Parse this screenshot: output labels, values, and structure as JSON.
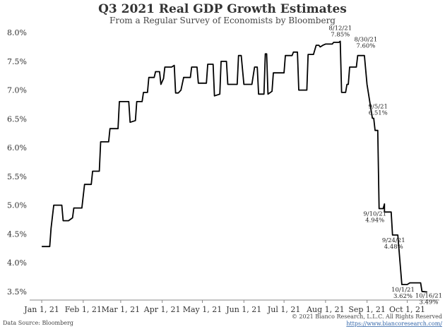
{
  "chart_data": {
    "type": "line",
    "title": "Q3 2021 Real GDP Growth Estimates",
    "subtitle": "From a Regular Survey of Economists by Bloomberg",
    "xlabel": "",
    "ylabel": "",
    "xlim": [
      "2020-12-23",
      "2021-10-25"
    ],
    "ylim": [
      3.35,
      8.1
    ],
    "yticks": [
      3.5,
      4.0,
      4.5,
      5.0,
      5.5,
      6.0,
      6.5,
      7.0,
      7.5,
      8.0
    ],
    "ytick_labels": [
      "3.5%",
      "4.0%",
      "4.5%",
      "5.0%",
      "5.5%",
      "6.0%",
      "6.5%",
      "7.0%",
      "7.5%",
      "8.0%"
    ],
    "xticks": [
      "2021-01-01",
      "2021-02-01",
      "2021-03-01",
      "2021-04-01",
      "2021-05-01",
      "2021-06-01",
      "2021-07-01",
      "2021-08-01",
      "2021-09-01",
      "2021-10-01"
    ],
    "xtick_labels": [
      "Jan 1, 21",
      "Feb 1, 21",
      "Mar 1, 21",
      "Apr 1, 21",
      "May 1, 21",
      "Jun 1, 21",
      "Jul 1, 21",
      "Aug 1, 21",
      "Sep 1, 21",
      "Oct 1, 21"
    ],
    "grid": false,
    "series": [
      {
        "color": "#000000",
        "points": [
          [
            "2021-01-01",
            4.28
          ],
          [
            "2021-01-07",
            4.28
          ],
          [
            "2021-01-08",
            4.6
          ],
          [
            "2021-01-10",
            5.0
          ],
          [
            "2021-01-16",
            5.0
          ],
          [
            "2021-01-17",
            4.73
          ],
          [
            "2021-01-21",
            4.73
          ],
          [
            "2021-01-24",
            4.78
          ],
          [
            "2021-01-25",
            4.95
          ],
          [
            "2021-01-31",
            4.95
          ],
          [
            "2021-02-02",
            5.36
          ],
          [
            "2021-02-07",
            5.36
          ],
          [
            "2021-02-08",
            5.59
          ],
          [
            "2021-02-13",
            5.59
          ],
          [
            "2021-02-14",
            6.1
          ],
          [
            "2021-02-20",
            6.1
          ],
          [
            "2021-02-21",
            6.33
          ],
          [
            "2021-02-27",
            6.33
          ],
          [
            "2021-02-28",
            6.8
          ],
          [
            "2021-03-07",
            6.8
          ],
          [
            "2021-03-08",
            6.44
          ],
          [
            "2021-03-12",
            6.47
          ],
          [
            "2021-03-13",
            6.8
          ],
          [
            "2021-03-17",
            6.8
          ],
          [
            "2021-03-18",
            6.96
          ],
          [
            "2021-03-21",
            6.96
          ],
          [
            "2021-03-22",
            7.22
          ],
          [
            "2021-03-26",
            7.22
          ],
          [
            "2021-03-27",
            7.32
          ],
          [
            "2021-03-30",
            7.32
          ],
          [
            "2021-03-31",
            7.1
          ],
          [
            "2021-04-02",
            7.2
          ],
          [
            "2021-04-03",
            7.4
          ],
          [
            "2021-04-08",
            7.4
          ],
          [
            "2021-04-10",
            7.43
          ],
          [
            "2021-04-11",
            6.95
          ],
          [
            "2021-04-13",
            6.95
          ],
          [
            "2021-04-15",
            7.0
          ],
          [
            "2021-04-17",
            7.22
          ],
          [
            "2021-04-22",
            7.22
          ],
          [
            "2021-04-23",
            7.4
          ],
          [
            "2021-04-27",
            7.4
          ],
          [
            "2021-04-28",
            7.12
          ],
          [
            "2021-05-04",
            7.12
          ],
          [
            "2021-05-05",
            7.45
          ],
          [
            "2021-05-09",
            7.45
          ],
          [
            "2021-05-10",
            6.9
          ],
          [
            "2021-05-14",
            6.93
          ],
          [
            "2021-05-15",
            7.5
          ],
          [
            "2021-05-19",
            7.5
          ],
          [
            "2021-05-20",
            7.1
          ],
          [
            "2021-05-27",
            7.1
          ],
          [
            "2021-05-28",
            7.6
          ],
          [
            "2021-05-30",
            7.6
          ],
          [
            "2021-06-01",
            7.1
          ],
          [
            "2021-06-07",
            7.1
          ],
          [
            "2021-06-09",
            7.4
          ],
          [
            "2021-06-11",
            7.4
          ],
          [
            "2021-06-12",
            6.93
          ],
          [
            "2021-06-16",
            6.93
          ],
          [
            "2021-06-17",
            7.63
          ],
          [
            "2021-06-18",
            7.63
          ],
          [
            "2021-06-19",
            6.93
          ],
          [
            "2021-06-22",
            6.98
          ],
          [
            "2021-06-23",
            7.3
          ],
          [
            "2021-07-01",
            7.3
          ],
          [
            "2021-07-02",
            7.6
          ],
          [
            "2021-07-07",
            7.6
          ],
          [
            "2021-07-08",
            7.66
          ],
          [
            "2021-07-11",
            7.66
          ],
          [
            "2021-07-12",
            7.0
          ],
          [
            "2021-07-18",
            7.0
          ],
          [
            "2021-07-19",
            7.62
          ],
          [
            "2021-07-23",
            7.62
          ],
          [
            "2021-07-25",
            7.78
          ],
          [
            "2021-07-27",
            7.78
          ],
          [
            "2021-07-28",
            7.75
          ],
          [
            "2021-07-30",
            7.78
          ],
          [
            "2021-08-01",
            7.8
          ],
          [
            "2021-08-06",
            7.8
          ],
          [
            "2021-08-07",
            7.83
          ],
          [
            "2021-08-11",
            7.83
          ],
          [
            "2021-08-12",
            7.85
          ],
          [
            "2021-08-13",
            6.96
          ],
          [
            "2021-08-16",
            6.96
          ],
          [
            "2021-08-17",
            7.1
          ],
          [
            "2021-08-18",
            7.1
          ],
          [
            "2021-08-19",
            7.4
          ],
          [
            "2021-08-24",
            7.4
          ],
          [
            "2021-08-25",
            7.6
          ],
          [
            "2021-08-30",
            7.6
          ],
          [
            "2021-09-01",
            7.1
          ],
          [
            "2021-09-05",
            6.51
          ],
          [
            "2021-09-06",
            6.51
          ],
          [
            "2021-09-07",
            6.3
          ],
          [
            "2021-09-09",
            6.3
          ],
          [
            "2021-09-10",
            4.94
          ],
          [
            "2021-09-13",
            4.94
          ],
          [
            "2021-09-14",
            5.02
          ],
          [
            "2021-09-14",
            4.88
          ],
          [
            "2021-09-19",
            4.88
          ],
          [
            "2021-09-20",
            4.48
          ],
          [
            "2021-09-24",
            4.48
          ],
          [
            "2021-09-27",
            3.62
          ],
          [
            "2021-10-01",
            3.62
          ],
          [
            "2021-10-03",
            3.65
          ],
          [
            "2021-10-11",
            3.65
          ],
          [
            "2021-10-12",
            3.5
          ],
          [
            "2021-10-16",
            3.49
          ]
        ]
      }
    ],
    "annotations": [
      {
        "date": "8/12/21",
        "value": "7.85%",
        "x": "2021-08-12",
        "y": 7.85
      },
      {
        "date": "8/30/21",
        "value": "7.60%",
        "x": "2021-08-30",
        "y": 7.6
      },
      {
        "date": "9/5/21",
        "value": "6.51%",
        "x": "2021-09-05",
        "y": 6.51
      },
      {
        "date": "9/10/21",
        "value": "4.94%",
        "x": "2021-09-10",
        "y": 4.94
      },
      {
        "date": "9/24/21",
        "value": "4.48%",
        "x": "2021-09-24",
        "y": 4.48
      },
      {
        "date": "10/1/21",
        "value": "3.62%",
        "x": "2021-10-01",
        "y": 3.62
      },
      {
        "date": "10/16/21",
        "value": "3.49%",
        "x": "2021-10-16",
        "y": 3.49
      }
    ]
  },
  "footer": {
    "source": "Data Source: Bloomberg",
    "copyright": "© 2021 Bianco Research, L.L.C. All Rights Reserved",
    "url": "https://www.biancoresearch.com/"
  }
}
